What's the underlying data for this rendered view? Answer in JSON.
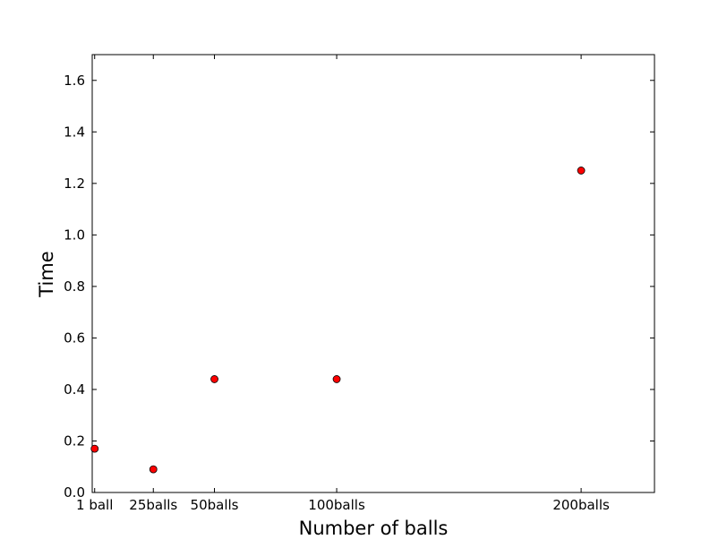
{
  "chart_data": {
    "type": "scatter",
    "title": "",
    "xlabel": "Number of balls",
    "ylabel": "Time",
    "x": [
      1,
      25,
      50,
      100,
      200
    ],
    "y": [
      0.17,
      0.09,
      0.44,
      0.44,
      1.25
    ],
    "xlim": [
      0,
      230
    ],
    "ylim": [
      0,
      1.7
    ],
    "xticks": [
      {
        "value": 1,
        "label": "1 ball"
      },
      {
        "value": 25,
        "label": "25balls"
      },
      {
        "value": 50,
        "label": "50balls"
      },
      {
        "value": 100,
        "label": "100balls"
      },
      {
        "value": 200,
        "label": "200balls"
      }
    ],
    "yticks": [
      {
        "value": 0.0,
        "label": "0.0"
      },
      {
        "value": 0.2,
        "label": "0.2"
      },
      {
        "value": 0.4,
        "label": "0.4"
      },
      {
        "value": 0.6,
        "label": "0.6"
      },
      {
        "value": 0.8,
        "label": "0.8"
      },
      {
        "value": 1.0,
        "label": "1.0"
      },
      {
        "value": 1.2,
        "label": "1.2"
      },
      {
        "value": 1.4,
        "label": "1.4"
      },
      {
        "value": 1.6,
        "label": "1.6"
      }
    ],
    "grid": false,
    "marker_color": "#ff0000",
    "marker_edge_color": "#000000"
  }
}
